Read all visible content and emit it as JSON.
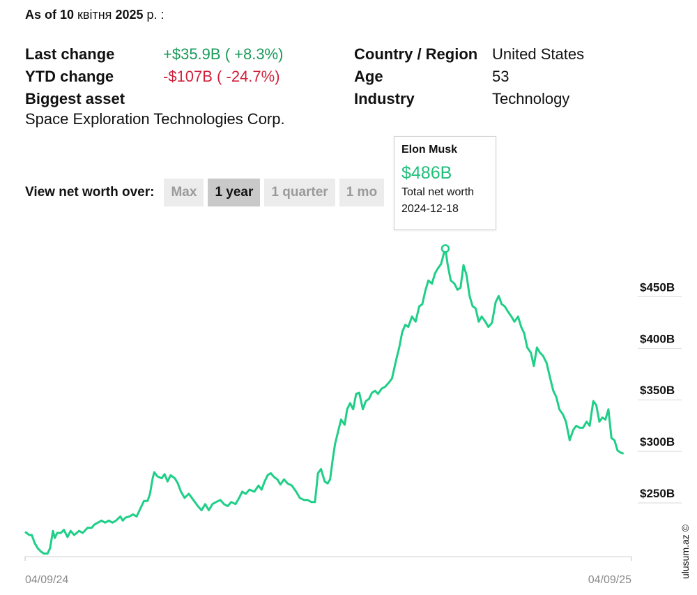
{
  "header": {
    "as_of_prefix": "As of 10",
    "as_of_month": "квітня",
    "as_of_year": "2025",
    "as_of_suffix": "р. :"
  },
  "stats_left": [
    {
      "label": "Last change",
      "value": "+$35.9B ( +8.3%)",
      "tone": "pos"
    },
    {
      "label": "YTD change",
      "value": "-$107B ( -24.7%)",
      "tone": "neg"
    },
    {
      "label": "Biggest asset",
      "value": "",
      "tone": ""
    }
  ],
  "biggest_asset_value": "Space Exploration Technologies Corp.",
  "stats_right": [
    {
      "label": "Country / Region",
      "value": "United States"
    },
    {
      "label": "Age",
      "value": "53"
    },
    {
      "label": "Industry",
      "value": "Technology"
    }
  ],
  "view": {
    "label": "View net worth over:",
    "options": [
      "Max",
      "1 year",
      "1 quarter",
      "1 mo"
    ],
    "selected": "1 year"
  },
  "tooltip": {
    "name": "Elon Musk",
    "value": "$486B",
    "subtitle": "Total net worth",
    "date": "2024-12-18"
  },
  "watermark": "ulusum.az ©",
  "colors": {
    "line": "#1fcf87",
    "positive": "#1b9a5a",
    "negative": "#d0213a"
  },
  "chart_data": {
    "type": "line",
    "x_start_label": "04/09/24",
    "x_end_label": "04/09/25",
    "ylim": [
      187,
      493
    ],
    "y_ticks": [
      {
        "value": 250,
        "label": "$250B"
      },
      {
        "value": 300,
        "label": "$300B"
      },
      {
        "value": 350,
        "label": "$350B"
      },
      {
        "value": 400,
        "label": "$400B"
      },
      {
        "value": 450,
        "label": "$450B"
      }
    ],
    "highlight": {
      "x": 0.693,
      "y": 486
    },
    "series": [
      {
        "points": [
          [
            0,
            211
          ],
          [
            0.007,
            208
          ],
          [
            0.011,
            208
          ],
          [
            0.016,
            200
          ],
          [
            0.021,
            195
          ],
          [
            0.026,
            192
          ],
          [
            0.031,
            190
          ],
          [
            0.037,
            190
          ],
          [
            0.041,
            195
          ],
          [
            0.046,
            212
          ],
          [
            0.049,
            205
          ],
          [
            0.053,
            210
          ],
          [
            0.059,
            210
          ],
          [
            0.064,
            213
          ],
          [
            0.07,
            206
          ],
          [
            0.075,
            212
          ],
          [
            0.081,
            208
          ],
          [
            0.089,
            212
          ],
          [
            0.095,
            210
          ],
          [
            0.103,
            215
          ],
          [
            0.11,
            215
          ],
          [
            0.114,
            218
          ],
          [
            0.12,
            220
          ],
          [
            0.126,
            222
          ],
          [
            0.132,
            220
          ],
          [
            0.138,
            222
          ],
          [
            0.144,
            220
          ],
          [
            0.15,
            222
          ],
          [
            0.157,
            226
          ],
          [
            0.161,
            222
          ],
          [
            0.166,
            225
          ],
          [
            0.172,
            226
          ],
          [
            0.178,
            228
          ],
          [
            0.184,
            226
          ],
          [
            0.196,
            241
          ],
          [
            0.202,
            241
          ],
          [
            0.206,
            248
          ],
          [
            0.21,
            262
          ],
          [
            0.213,
            269
          ],
          [
            0.218,
            265
          ],
          [
            0.225,
            263
          ],
          [
            0.23,
            267
          ],
          [
            0.235,
            260
          ],
          [
            0.24,
            266
          ],
          [
            0.247,
            263
          ],
          [
            0.252,
            258
          ],
          [
            0.257,
            250
          ],
          [
            0.263,
            244
          ],
          [
            0.27,
            248
          ],
          [
            0.275,
            244
          ],
          [
            0.28,
            240
          ],
          [
            0.285,
            236
          ],
          [
            0.291,
            232
          ],
          [
            0.297,
            238
          ],
          [
            0.303,
            232
          ],
          [
            0.309,
            238
          ],
          [
            0.315,
            240
          ],
          [
            0.322,
            242
          ],
          [
            0.328,
            238
          ],
          [
            0.334,
            236
          ],
          [
            0.34,
            240
          ],
          [
            0.347,
            238
          ],
          [
            0.353,
            244
          ],
          [
            0.358,
            250
          ],
          [
            0.364,
            248
          ],
          [
            0.37,
            252
          ],
          [
            0.378,
            250
          ],
          [
            0.385,
            256
          ],
          [
            0.39,
            252
          ],
          [
            0.395,
            260
          ],
          [
            0.4,
            266
          ],
          [
            0.405,
            268
          ],
          [
            0.411,
            264
          ],
          [
            0.416,
            262
          ],
          [
            0.421,
            257
          ],
          [
            0.427,
            262
          ],
          [
            0.433,
            258
          ],
          [
            0.44,
            256
          ],
          [
            0.447,
            250
          ],
          [
            0.453,
            244
          ],
          [
            0.46,
            242
          ],
          [
            0.466,
            242
          ],
          [
            0.472,
            240
          ],
          [
            0.478,
            240
          ],
          [
            0.483,
            268
          ],
          [
            0.488,
            272
          ],
          [
            0.494,
            260
          ],
          [
            0.499,
            258
          ],
          [
            0.503,
            262
          ],
          [
            0.507,
            280
          ],
          [
            0.511,
            296
          ],
          [
            0.516,
            308
          ],
          [
            0.521,
            320
          ],
          [
            0.527,
            315
          ],
          [
            0.531,
            330
          ],
          [
            0.536,
            336
          ],
          [
            0.541,
            330
          ],
          [
            0.546,
            345
          ],
          [
            0.551,
            346
          ],
          [
            0.557,
            330
          ],
          [
            0.562,
            338
          ],
          [
            0.567,
            340
          ],
          [
            0.572,
            346
          ],
          [
            0.577,
            348
          ],
          [
            0.582,
            345
          ],
          [
            0.588,
            350
          ],
          [
            0.594,
            352
          ],
          [
            0.6,
            356
          ],
          [
            0.605,
            360
          ],
          [
            0.612,
            378
          ],
          [
            0.617,
            390
          ],
          [
            0.622,
            405
          ],
          [
            0.627,
            412
          ],
          [
            0.632,
            410
          ],
          [
            0.638,
            420
          ],
          [
            0.644,
            415
          ],
          [
            0.65,
            430
          ],
          [
            0.655,
            432
          ],
          [
            0.66,
            445
          ],
          [
            0.665,
            455
          ],
          [
            0.671,
            452
          ],
          [
            0.676,
            462
          ],
          [
            0.681,
            467
          ],
          [
            0.686,
            471
          ],
          [
            0.69,
            480
          ],
          [
            0.693,
            486
          ],
          [
            0.697,
            470
          ],
          [
            0.702,
            455
          ],
          [
            0.708,
            452
          ],
          [
            0.713,
            446
          ],
          [
            0.718,
            448
          ],
          [
            0.723,
            470
          ],
          [
            0.728,
            460
          ],
          [
            0.733,
            440
          ],
          [
            0.738,
            430
          ],
          [
            0.743,
            428
          ],
          [
            0.748,
            415
          ],
          [
            0.753,
            420
          ],
          [
            0.759,
            415
          ],
          [
            0.764,
            410
          ],
          [
            0.77,
            414
          ],
          [
            0.776,
            434
          ],
          [
            0.781,
            440
          ],
          [
            0.786,
            432
          ],
          [
            0.791,
            430
          ],
          [
            0.796,
            425
          ],
          [
            0.802,
            420
          ],
          [
            0.807,
            415
          ],
          [
            0.813,
            420
          ],
          [
            0.818,
            410
          ],
          [
            0.823,
            404
          ],
          [
            0.828,
            390
          ],
          [
            0.834,
            385
          ],
          [
            0.839,
            372
          ],
          [
            0.844,
            390
          ],
          [
            0.849,
            385
          ],
          [
            0.854,
            382
          ],
          [
            0.86,
            375
          ],
          [
            0.866,
            360
          ],
          [
            0.871,
            348
          ],
          [
            0.876,
            342
          ],
          [
            0.881,
            330
          ],
          [
            0.887,
            325
          ],
          [
            0.892,
            318
          ],
          [
            0.898,
            300
          ],
          [
            0.904,
            310
          ],
          [
            0.909,
            314
          ],
          [
            0.915,
            312
          ],
          [
            0.92,
            312
          ],
          [
            0.926,
            318
          ],
          [
            0.931,
            314
          ],
          [
            0.937,
            338
          ],
          [
            0.942,
            334
          ],
          [
            0.947,
            318
          ],
          [
            0.952,
            322
          ],
          [
            0.957,
            320
          ],
          [
            0.962,
            330
          ],
          [
            0.967,
            302
          ],
          [
            0.972,
            300
          ],
          [
            0.977,
            290
          ],
          [
            0.982,
            288
          ],
          [
            0.987,
            287
          ]
        ]
      }
    ]
  }
}
